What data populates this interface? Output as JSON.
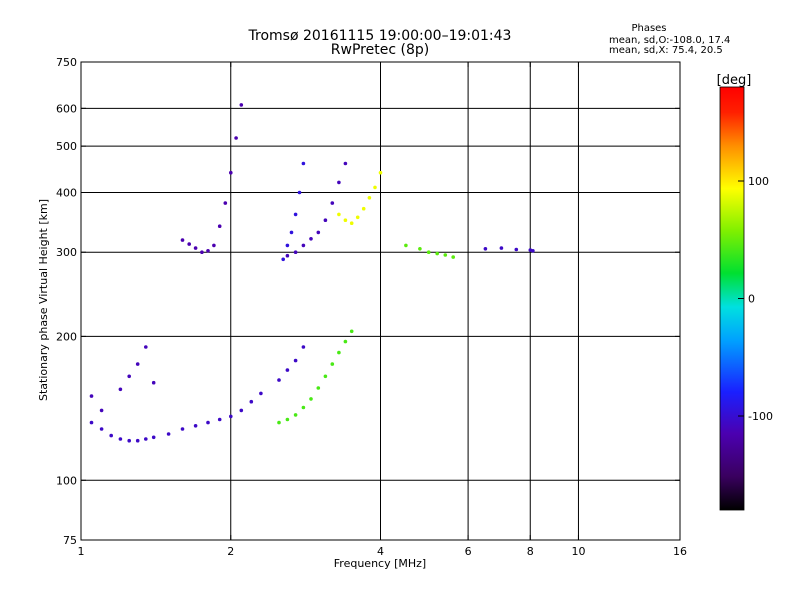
{
  "chart_data": {
    "type": "scatter",
    "title": "Tromsø 20161115 19:00:00–19:01:43",
    "subtitle": "RwPretec (8p)",
    "xlabel": "Frequency [MHz]",
    "ylabel": "Stationary phase Virtual Height [km]",
    "x_scale": "log",
    "y_scale": "log",
    "xlim": [
      1,
      16
    ],
    "ylim": [
      75,
      750
    ],
    "x_ticks": [
      1,
      2,
      4,
      6,
      8,
      10,
      16
    ],
    "y_ticks": [
      75,
      100,
      200,
      300,
      400,
      500,
      600,
      750
    ],
    "x_gridlines": [
      2,
      4,
      6,
      8,
      10
    ],
    "y_gridlines": [
      100,
      200,
      300,
      400,
      500,
      600
    ],
    "grid": true,
    "phases": {
      "title": "Phases",
      "line1": "mean, sd,O:-108.0, 17.4",
      "line2": "mean, sd,X:  75.4, 20.5"
    },
    "colorbar": {
      "label": "[deg]",
      "ticks": [
        100,
        0,
        -100
      ],
      "min": -180,
      "max": 180,
      "colormap": "rainbow"
    },
    "series": [
      {
        "phase_deg": -105,
        "x": [
          1.05,
          1.1,
          1.15,
          1.2,
          1.25,
          1.3,
          1.35,
          1.4,
          1.5,
          1.6,
          1.7,
          1.8,
          1.9,
          2.0,
          2.1,
          2.2,
          2.3,
          2.5,
          2.6,
          2.7,
          2.8
        ],
        "y": [
          132,
          128,
          124,
          122,
          121,
          121,
          122,
          123,
          125,
          128,
          130,
          132,
          134,
          136,
          140,
          146,
          152,
          162,
          170,
          178,
          190
        ]
      },
      {
        "phase_deg": -110,
        "x": [
          1.05,
          1.1,
          1.2,
          1.25,
          1.3,
          1.35,
          1.4
        ],
        "y": [
          150,
          140,
          155,
          165,
          175,
          190,
          160
        ]
      },
      {
        "phase_deg": -115,
        "x": [
          1.6,
          1.65,
          1.7,
          1.75,
          1.8,
          1.85,
          1.9,
          1.95,
          2.0,
          2.05,
          2.1
        ],
        "y": [
          318,
          312,
          306,
          300,
          302,
          310,
          340,
          380,
          440,
          520,
          610
        ]
      },
      {
        "phase_deg": -110,
        "x": [
          2.6,
          2.7,
          2.8,
          2.9,
          3.0,
          3.1,
          3.2,
          3.3,
          3.4
        ],
        "y": [
          295,
          300,
          310,
          320,
          330,
          350,
          380,
          420,
          460
        ]
      },
      {
        "phase_deg": -95,
        "x": [
          2.55,
          2.6,
          2.65,
          2.7,
          2.75,
          2.8
        ],
        "y": [
          290,
          310,
          330,
          360,
          400,
          460
        ]
      },
      {
        "phase_deg": 90,
        "x": [
          3.3,
          3.4,
          3.5,
          3.6,
          3.7,
          3.8,
          3.9,
          4.0
        ],
        "y": [
          360,
          350,
          345,
          355,
          370,
          390,
          410,
          440
        ]
      },
      {
        "phase_deg": 40,
        "x": [
          2.5,
          2.6,
          2.7,
          2.8,
          2.9,
          3.0,
          3.1,
          3.2,
          3.3,
          3.4,
          3.5
        ],
        "y": [
          132,
          134,
          137,
          142,
          148,
          156,
          165,
          175,
          185,
          195,
          205
        ]
      },
      {
        "phase_deg": 45,
        "x": [
          4.5,
          4.8,
          5.0,
          5.2,
          5.4,
          5.6
        ],
        "y": [
          310,
          305,
          300,
          298,
          296,
          293
        ]
      },
      {
        "phase_deg": -105,
        "x": [
          6.5,
          7.0,
          7.5,
          8.0,
          8.1
        ],
        "y": [
          305,
          306,
          304,
          303,
          302
        ]
      }
    ]
  }
}
